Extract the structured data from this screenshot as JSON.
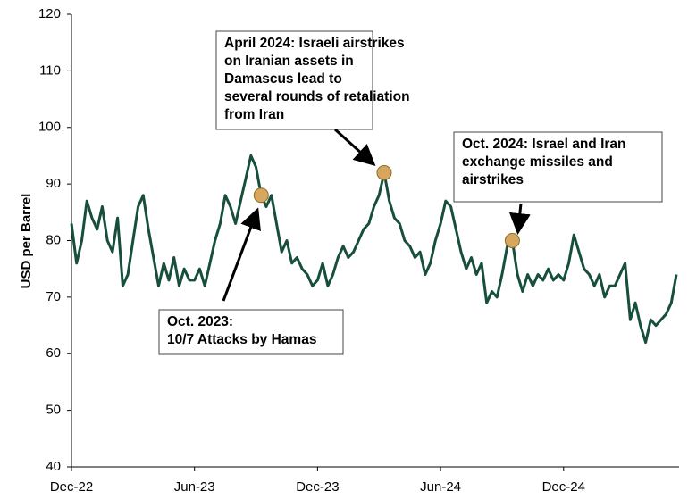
{
  "chart_data": {
    "type": "line",
    "y_label": "USD per Barrel",
    "categories": [
      "Dec-22",
      null,
      null,
      null,
      null,
      null,
      null,
      null,
      null,
      null,
      null,
      null,
      null,
      null,
      null,
      null,
      null,
      null,
      null,
      null,
      null,
      null,
      null,
      null,
      "Jun-23",
      null,
      null,
      null,
      null,
      null,
      null,
      null,
      null,
      null,
      null,
      null,
      null,
      null,
      null,
      null,
      null,
      null,
      null,
      null,
      null,
      null,
      null,
      null,
      "Dec-23",
      null,
      null,
      null,
      null,
      null,
      null,
      null,
      null,
      null,
      null,
      null,
      null,
      null,
      null,
      null,
      null,
      null,
      null,
      null,
      null,
      null,
      null,
      null,
      "Jun-24",
      null,
      null,
      null,
      null,
      null,
      null,
      null,
      null,
      null,
      null,
      null,
      null,
      null,
      null,
      null,
      null,
      null,
      null,
      null,
      null,
      null,
      null,
      null,
      "Dec-24",
      null,
      null,
      null,
      null,
      null,
      null,
      null,
      null,
      null,
      null,
      null,
      null,
      null,
      null,
      null,
      null,
      null,
      null,
      null,
      null,
      null,
      null
    ],
    "values": [
      83,
      76,
      80,
      87,
      84,
      82,
      86,
      80,
      78,
      84,
      72,
      74,
      80,
      86,
      88,
      82,
      77,
      72,
      76,
      73,
      77,
      72,
      75,
      73,
      73,
      75,
      72,
      76,
      80,
      83,
      88,
      86,
      83,
      87,
      91,
      95,
      93,
      88,
      86,
      88,
      83,
      78,
      80,
      76,
      77,
      75,
      74,
      72,
      73,
      76,
      72,
      74,
      77,
      79,
      77,
      78,
      80,
      82,
      83,
      86,
      88,
      92,
      87,
      84,
      83,
      80,
      79,
      77,
      78,
      74,
      76,
      80,
      83,
      87,
      86,
      82,
      78,
      75,
      77,
      74,
      76,
      69,
      71,
      70,
      74,
      79,
      80,
      74,
      71,
      74,
      72,
      74,
      73,
      75,
      73,
      74,
      73,
      76,
      81,
      78,
      75,
      74,
      72,
      74,
      70,
      72,
      72,
      74,
      76,
      66,
      69,
      65,
      62,
      66,
      65,
      66,
      67,
      69,
      74
    ],
    "color": "#174f3c",
    "marker_color": "#d6a75c",
    "ylim": [
      40,
      120
    ],
    "yticks": [
      40,
      50,
      60,
      70,
      80,
      90,
      100,
      110,
      120
    ],
    "grid": false,
    "annotations": [
      {
        "lines": [
          "Oct. 2023:",
          "10/7 Attacks by Hamas"
        ]
      },
      {
        "lines": [
          "April 2024: Israeli airstrikes",
          "on Iranian assets in",
          "Damascus lead to",
          "several rounds of retaliation",
          "from Iran"
        ]
      },
      {
        "lines": [
          "Oct. 2024: Israel and Iran",
          "exchange missiles and",
          "airstrikes"
        ]
      }
    ]
  }
}
